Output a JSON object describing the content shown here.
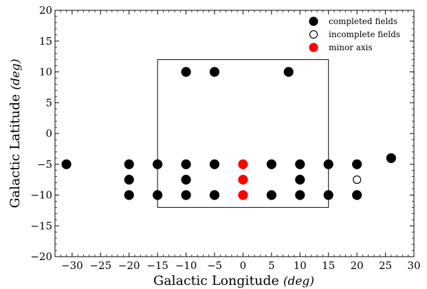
{
  "chart_data": {
    "type": "scatter",
    "xlabel": "Galactic Longitude",
    "xlabel_unit": "deg",
    "ylabel": "Galactic Latitude",
    "ylabel_unit": "deg",
    "xlim": [
      -33,
      30
    ],
    "ylim": [
      -20,
      20
    ],
    "xticks": [
      -30,
      -25,
      -20,
      -15,
      -10,
      -5,
      0,
      5,
      10,
      15,
      20,
      25,
      30
    ],
    "yticks": [
      -20,
      -15,
      -10,
      -5,
      0,
      5,
      10,
      15,
      20
    ],
    "grid": false,
    "legend_position": "top-right",
    "rectangle": {
      "x": [
        -15,
        15
      ],
      "y": [
        -12,
        12
      ]
    },
    "series": [
      {
        "name": "completed fields",
        "marker": "filled-circle",
        "color": "#000000",
        "points": [
          [
            -31,
            -5
          ],
          [
            -20,
            -5
          ],
          [
            -15,
            -5
          ],
          [
            -10,
            -5
          ],
          [
            -5,
            -5
          ],
          [
            5,
            -5
          ],
          [
            10,
            -5
          ],
          [
            15,
            -5
          ],
          [
            20,
            -5
          ],
          [
            26,
            -4
          ],
          [
            -20,
            -7.5
          ],
          [
            -10,
            -7.5
          ],
          [
            10,
            -7.5
          ],
          [
            -20,
            -10
          ],
          [
            -15,
            -10
          ],
          [
            -10,
            -10
          ],
          [
            -5,
            -10
          ],
          [
            5,
            -10
          ],
          [
            10,
            -10
          ],
          [
            15,
            -10
          ],
          [
            20,
            -10
          ],
          [
            -10,
            10
          ],
          [
            -5,
            10
          ],
          [
            8,
            10
          ]
        ]
      },
      {
        "name": "incomplete fields",
        "marker": "open-circle",
        "color": "#000000",
        "points": [
          [
            20,
            -7.5
          ]
        ]
      },
      {
        "name": "minor axis",
        "marker": "filled-circle",
        "color": "#ff0000",
        "points": [
          [
            0,
            -5
          ],
          [
            0,
            -7.5
          ],
          [
            0,
            -10
          ]
        ]
      }
    ]
  }
}
